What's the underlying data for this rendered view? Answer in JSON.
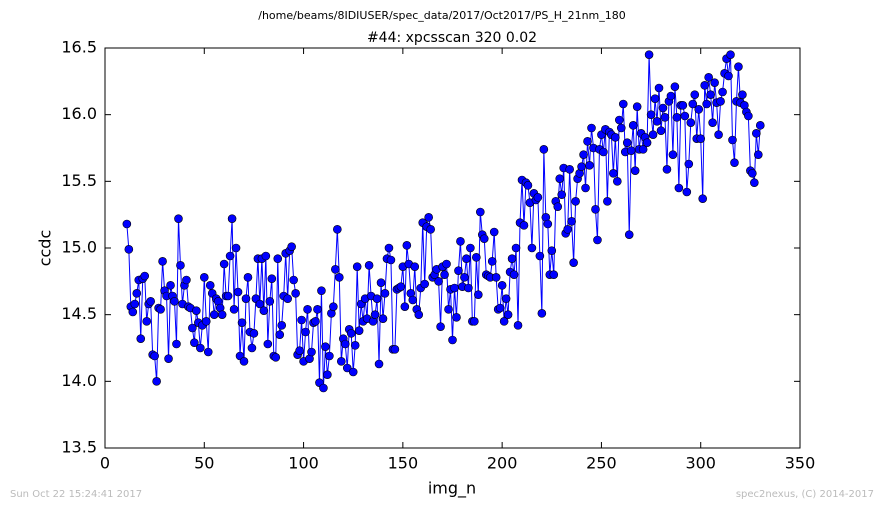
{
  "chart_data": {
    "type": "line",
    "suptitle": "/home/beams/8IDIUSER/spec_data/2017/Oct2017/PS_H_21nm_180",
    "title": "#44: xpcsscan 320 0.02",
    "xlabel": "img_n",
    "ylabel": "ccdc",
    "footer_left": "Sun Oct 22 15:24:41 2017",
    "footer_right": "spec2nexus, (C) 2014-2017",
    "color": "#0000ff",
    "xlim": [
      0,
      350
    ],
    "xticks": [
      0,
      50,
      100,
      150,
      200,
      250,
      300,
      350
    ],
    "ylim": [
      13.5,
      16.5
    ],
    "yticks": [
      13.5,
      {
        "value": 14,
        "label": "14.0"
      },
      14.5,
      {
        "value": 15,
        "label": "15.0"
      },
      15.5,
      {
        "value": 16,
        "label": "16.0"
      },
      16.5
    ],
    "x": [
      11,
      12,
      13,
      14,
      15,
      16,
      17,
      18,
      19,
      20,
      21,
      22,
      23,
      24,
      25,
      26,
      27,
      28,
      29,
      30,
      31,
      32,
      33,
      34,
      35,
      36,
      37,
      38,
      39,
      40,
      41,
      42,
      43,
      44,
      45,
      46,
      47,
      48,
      49,
      50,
      51,
      52,
      53,
      54,
      55,
      56,
      57,
      58,
      59,
      60,
      61,
      62,
      63,
      64,
      65,
      66,
      67,
      68,
      69,
      70,
      71,
      72,
      73,
      74,
      75,
      76,
      77,
      78,
      79,
      80,
      81,
      82,
      83,
      84,
      85,
      86,
      87,
      88,
      89,
      90,
      91,
      92,
      93,
      94,
      95,
      96,
      97,
      98,
      99,
      100,
      101,
      102,
      103,
      104,
      105,
      106,
      107,
      108,
      109,
      110,
      111,
      112,
      113,
      114,
      115,
      116,
      117,
      118,
      119,
      120,
      121,
      122,
      123,
      124,
      125,
      126,
      127,
      128,
      129,
      130,
      131,
      132,
      133,
      134,
      135,
      136,
      137,
      138,
      139,
      140,
      141,
      142,
      143,
      144,
      145,
      146,
      147,
      148,
      149,
      150,
      151,
      152,
      153,
      154,
      155,
      156,
      157,
      158,
      159,
      160,
      161,
      162,
      163,
      164,
      165,
      166,
      167,
      168,
      169,
      170,
      171,
      172,
      173,
      174,
      175,
      176,
      177,
      178,
      179,
      180,
      181,
      182,
      183,
      184,
      185,
      186,
      187,
      188,
      189,
      190,
      191,
      192,
      193,
      194,
      195,
      196,
      197,
      198,
      199,
      200,
      201,
      202,
      203,
      204,
      205,
      206,
      207,
      208,
      209,
      210,
      211,
      212,
      213,
      214,
      215,
      216,
      217,
      218,
      219,
      220,
      221,
      222,
      223,
      224,
      225,
      226,
      227,
      228,
      229,
      230,
      231,
      232,
      233,
      234,
      235,
      236,
      237,
      238,
      239,
      240,
      241,
      242,
      243,
      244,
      245,
      246,
      247,
      248,
      249,
      250,
      251,
      252,
      253,
      254,
      255,
      256,
      257,
      258,
      259,
      260,
      261,
      262,
      263,
      264,
      265,
      266,
      267,
      268,
      269,
      270,
      271,
      272,
      273,
      274,
      275,
      276,
      277,
      278,
      279,
      280,
      281,
      282,
      283,
      284,
      285,
      286,
      287,
      288,
      289,
      290,
      291,
      292,
      293,
      294,
      295,
      296,
      297,
      298,
      299,
      300,
      301,
      302,
      303,
      304,
      305,
      306,
      307,
      308,
      309,
      310,
      311,
      312,
      313,
      314,
      315,
      316,
      317,
      318,
      319,
      320,
      321,
      322,
      323,
      324,
      325,
      326,
      327,
      328,
      329,
      330
    ],
    "values": [
      15.18,
      14.99,
      14.56,
      14.52,
      14.58,
      14.66,
      14.76,
      14.32,
      14.77,
      14.79,
      14.45,
      14.58,
      14.6,
      14.2,
      14.19,
      14.0,
      14.55,
      14.54,
      14.9,
      14.68,
      14.64,
      14.17,
      14.72,
      14.64,
      14.6,
      14.28,
      15.22,
      14.87,
      14.58,
      14.72,
      14.76,
      14.56,
      14.55,
      14.4,
      14.29,
      14.53,
      14.44,
      14.25,
      14.42,
      14.78,
      14.45,
      14.22,
      14.72,
      14.66,
      14.5,
      14.62,
      14.6,
      14.55,
      14.5,
      14.88,
      14.64,
      14.64,
      14.94,
      15.22,
      14.54,
      15.0,
      14.67,
      14.19,
      14.44,
      14.15,
      14.62,
      14.78,
      14.37,
      14.25,
      14.36,
      14.62,
      14.92,
      14.58,
      14.92,
      14.53,
      14.94,
      14.28,
      14.6,
      14.77,
      14.19,
      14.18,
      14.92,
      14.35,
      14.42,
      14.64,
      14.96,
      14.62,
      14.98,
      15.01,
      14.76,
      14.66,
      14.2,
      14.23,
      14.46,
      14.15,
      14.37,
      14.54,
      14.17,
      14.22,
      14.44,
      14.45,
      14.54,
      13.99,
      14.68,
      13.95,
      14.26,
      14.05,
      14.19,
      14.51,
      14.56,
      14.84,
      15.14,
      14.78,
      14.15,
      14.32,
      14.28,
      14.1,
      14.39,
      14.36,
      14.07,
      14.27,
      14.86,
      14.38,
      14.58,
      14.45,
      14.62,
      14.47,
      14.87,
      14.64,
      14.45,
      14.5,
      14.62,
      14.13,
      14.74,
      14.47,
      14.66,
      14.92,
      15.0,
      14.91,
      14.24,
      14.24,
      14.69,
      14.7,
      14.71,
      14.86,
      14.56,
      15.02,
      14.88,
      14.66,
      14.61,
      14.86,
      14.54,
      14.5,
      14.7,
      15.19,
      14.73,
      15.16,
      15.23,
      15.14,
      14.78,
      14.8,
      14.84,
      14.75,
      14.41,
      14.86,
      14.8,
      14.88,
      14.54,
      14.69,
      14.31,
      14.7,
      14.48,
      14.83,
      15.05,
      14.71,
      14.78,
      14.92,
      14.7,
      15.0,
      14.45,
      14.45,
      14.93,
      14.65,
      15.27,
      15.1,
      15.07,
      14.8,
      14.79,
      14.78,
      14.9,
      15.12,
      14.78,
      14.54,
      14.55,
      14.72,
      14.45,
      14.62,
      14.5,
      14.82,
      14.92,
      14.8,
      15.0,
      14.42,
      15.19,
      15.51,
      15.17,
      15.49,
      15.47,
      15.34,
      15.0,
      15.41,
      15.36,
      15.38,
      14.94,
      14.51,
      15.74,
      15.23,
      15.18,
      14.8,
      14.98,
      14.8,
      15.35,
      15.31,
      15.52,
      15.4,
      15.6,
      15.11,
      15.14,
      15.59,
      15.2,
      14.89,
      15.35,
      15.52,
      15.56,
      15.61,
      15.7,
      15.45,
      15.8,
      15.62,
      15.9,
      15.75,
      15.29,
      15.06,
      15.74,
      15.85,
      15.72,
      15.89,
      15.35,
      15.87,
      15.85,
      15.56,
      15.83,
      15.5,
      15.96,
      15.9,
      16.08,
      15.72,
      15.79,
      15.1,
      15.73,
      15.92,
      15.58,
      16.06,
      15.74,
      15.86,
      15.74,
      15.83,
      15.79,
      16.45,
      16.0,
      15.85,
      16.12,
      15.95,
      16.2,
      15.88,
      16.05,
      15.98,
      15.59,
      16.1,
      16.14,
      15.7,
      16.21,
      15.98,
      15.45,
      16.07,
      16.07,
      15.99,
      15.42,
      15.63,
      15.94,
      16.08,
      16.15,
      15.82,
      16.04,
      15.82,
      15.37,
      16.22,
      16.08,
      16.28,
      16.15,
      15.94,
      16.24,
      16.09,
      15.85,
      16.1,
      16.17,
      16.31,
      16.42,
      16.29,
      16.45,
      15.81,
      15.64,
      16.1,
      16.36,
      16.09,
      16.15,
      16.07,
      16.02,
      15.99,
      15.58,
      15.56,
      15.49,
      15.86,
      15.7,
      15.92
    ]
  }
}
